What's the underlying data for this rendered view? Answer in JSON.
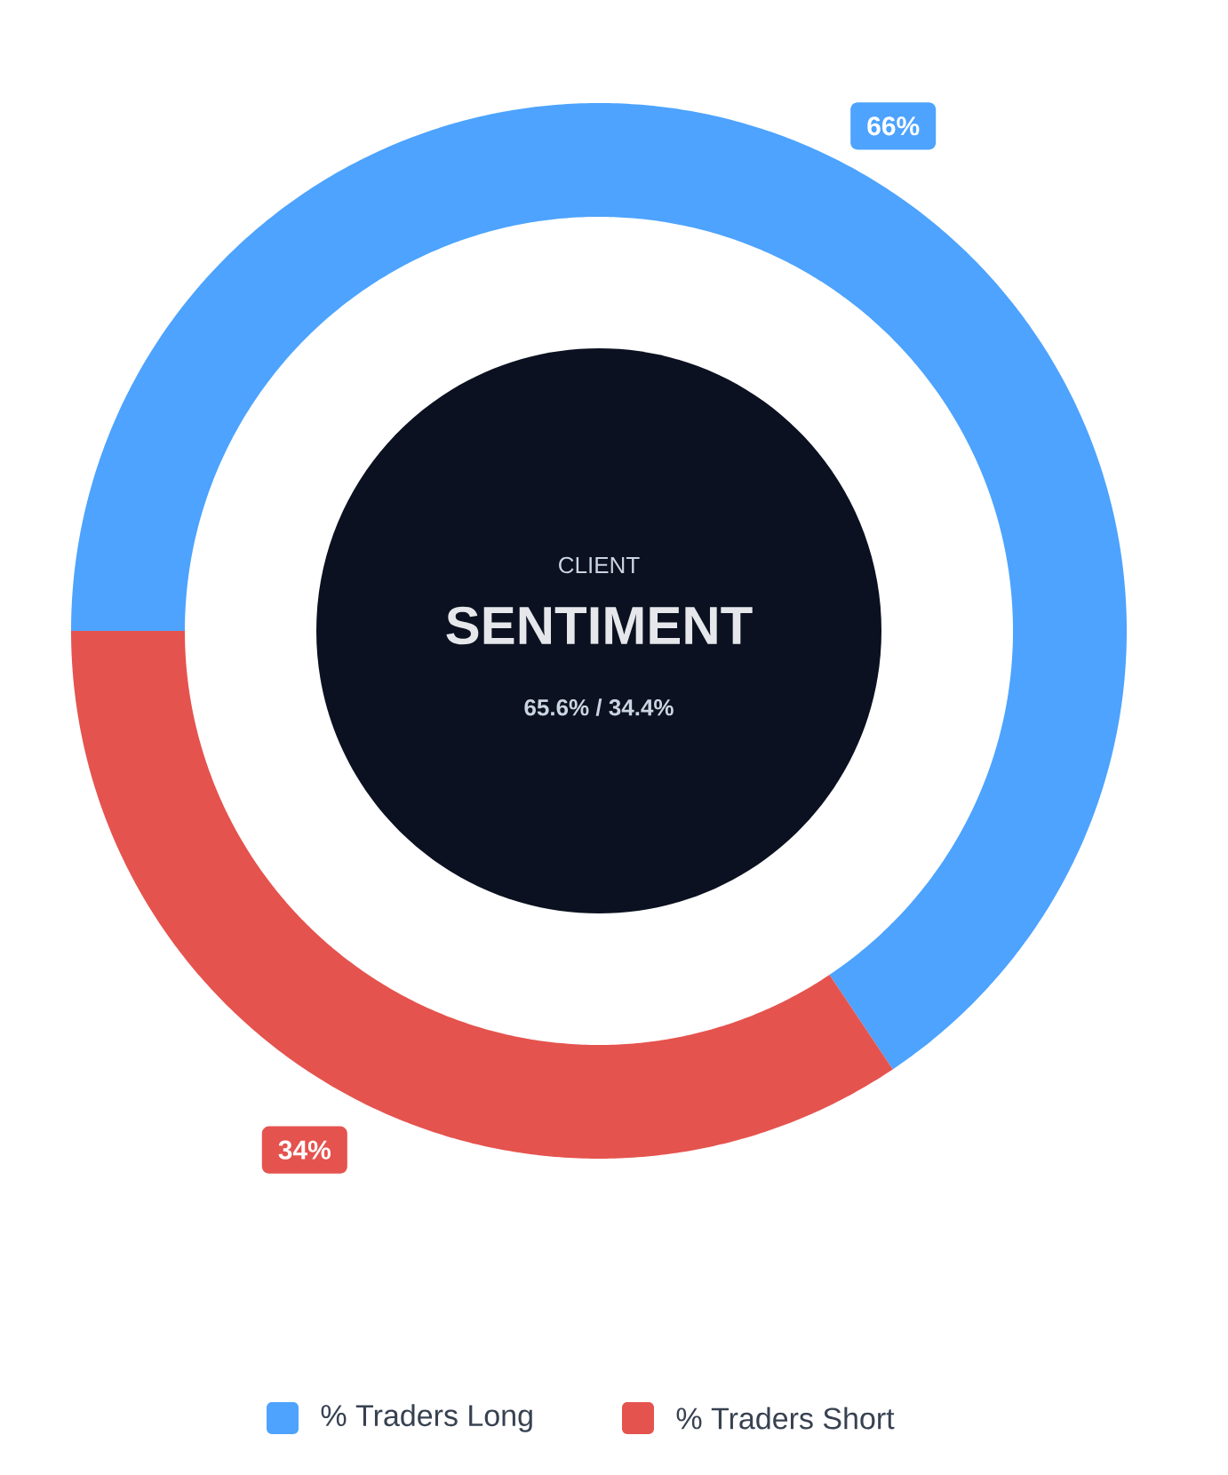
{
  "chart_data": {
    "type": "donut",
    "categories": [
      "% Traders Long",
      "% Traders Short"
    ],
    "values": [
      65.6,
      34.4
    ],
    "colors": [
      "#4da3fe",
      "#e5534e"
    ],
    "value_labels": [
      "66%",
      "34%"
    ],
    "annotations": [
      "CLIENT",
      "SENTIMENT",
      "65.6% / 34.4%"
    ],
    "legend": "bottom"
  }
}
